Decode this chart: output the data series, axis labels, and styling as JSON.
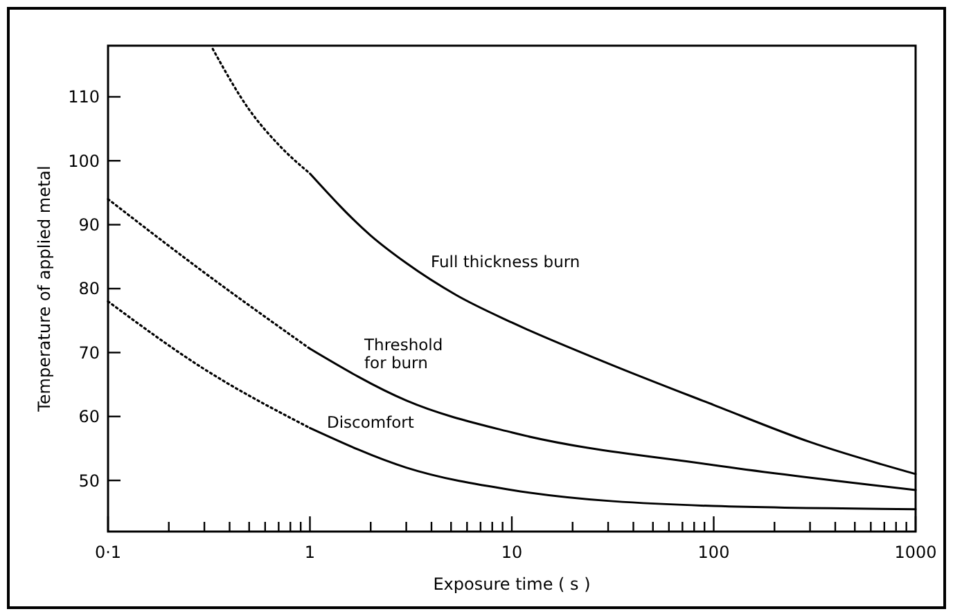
{
  "chart_data": {
    "type": "line",
    "xlabel": "Exposure time ( s )",
    "ylabel": "Temperature of applied metal",
    "log": "x",
    "xlim": [
      0.1,
      1000
    ],
    "ylim": [
      42,
      118
    ],
    "xticks": [
      {
        "value": 0.1,
        "label": "0·1"
      },
      {
        "value": 0.2,
        "label": null
      },
      {
        "value": 0.3,
        "label": null
      },
      {
        "value": 0.4,
        "label": null
      },
      {
        "value": 0.5,
        "label": null
      },
      {
        "value": 0.6,
        "label": null
      },
      {
        "value": 0.7,
        "label": null
      },
      {
        "value": 0.8,
        "label": null
      },
      {
        "value": 0.9,
        "label": null
      },
      1,
      {
        "value": 2,
        "label": null
      },
      {
        "value": 3,
        "label": null
      },
      {
        "value": 4,
        "label": null
      },
      {
        "value": 5,
        "label": null
      },
      {
        "value": 6,
        "label": null
      },
      {
        "value": 7,
        "label": null
      },
      {
        "value": 8,
        "label": null
      },
      {
        "value": 9,
        "label": null
      },
      10,
      {
        "value": 20,
        "label": null
      },
      {
        "value": 30,
        "label": null
      },
      {
        "value": 40,
        "label": null
      },
      {
        "value": 50,
        "label": null
      },
      {
        "value": 60,
        "label": null
      },
      {
        "value": 70,
        "label": null
      },
      {
        "value": 80,
        "label": null
      },
      {
        "value": 90,
        "label": null
      },
      100,
      {
        "value": 200,
        "label": null
      },
      {
        "value": 300,
        "label": null
      },
      {
        "value": 400,
        "label": null
      },
      {
        "value": 500,
        "label": null
      },
      {
        "value": 600,
        "label": null
      },
      {
        "value": 700,
        "label": null
      },
      {
        "value": 800,
        "label": null
      },
      {
        "value": 900,
        "label": null
      },
      1000
    ],
    "yticks": [
      50,
      60,
      70,
      80,
      90,
      100,
      110
    ],
    "grid": false,
    "marker": "none",
    "series": [
      {
        "color": "#000000",
        "line_style": "dotted",
        "x": [
          0.33,
          0.5,
          0.7,
          1
        ],
        "values": [
          117.5,
          108,
          102.5,
          98
        ]
      },
      {
        "name": "Full thickness burn",
        "color": "#000000",
        "line_style": "solid",
        "x": [
          1,
          2,
          3,
          5.3,
          10,
          30,
          100,
          300,
          1000
        ],
        "values": [
          98,
          88.3,
          84,
          79,
          74.7,
          68.3,
          61.8,
          56,
          51
        ]
      },
      {
        "color": "#000000",
        "line_style": "dotted",
        "x": [
          0.1,
          0.3,
          1
        ],
        "values": [
          94,
          82.5,
          70.6
        ]
      },
      {
        "name": "Threshold\nfor burn",
        "color": "#000000",
        "line_style": "solid",
        "x": [
          1,
          3,
          10,
          100,
          1000
        ],
        "values": [
          70.6,
          62.5,
          57.5,
          52.4,
          48.5
        ]
      },
      {
        "color": "#000000",
        "line_style": "dotted",
        "x": [
          0.1,
          0.3,
          1
        ],
        "values": [
          78,
          67.4,
          58.2
        ]
      },
      {
        "name": "Discomfort",
        "color": "#000000",
        "line_style": "solid",
        "x": [
          1,
          3,
          10,
          100,
          1000
        ],
        "values": [
          58.2,
          52,
          48.5,
          46,
          45.5
        ]
      }
    ]
  }
}
